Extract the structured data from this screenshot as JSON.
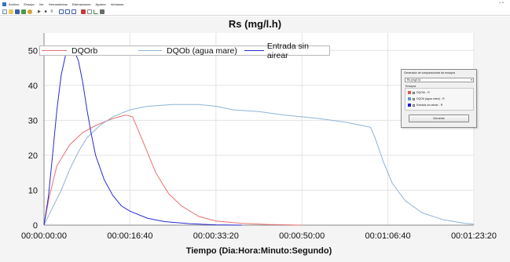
{
  "menu": {
    "items": [
      "Archivo",
      "Ensayo",
      "Ver",
      "Herramientas",
      "Estimaciones",
      "Ajustes",
      "Ventanas"
    ],
    "window_controls": "- ▫"
  },
  "toolbar": {
    "buttons": [
      "new-file-icon",
      "open-folder-icon",
      "save-icon",
      "export-icon",
      "settings-icon",
      "forward-icon",
      "stop-icon",
      "search-icon",
      "reactor-1-icon",
      "reactor-2-icon",
      "reactor-3-icon",
      "table-icon",
      "grid-icon",
      "chart-icon",
      "image-icon"
    ]
  },
  "chart_data": {
    "type": "line",
    "title": "Rs (mg/l.h)",
    "xlabel": "Tiempo (Dia:Hora:Minuto:Segundo)",
    "ylabel": "",
    "x_unit": "seconds",
    "xlim": [
      0,
      5000
    ],
    "ylim": [
      0,
      55
    ],
    "x_ticks": [
      0,
      1000,
      2000,
      3000,
      4000,
      5000
    ],
    "x_tick_labels": [
      "00:00:00:00",
      "00:00:16:40",
      "00:00:33:20",
      "00:00:50:00",
      "00:01:06:40",
      "00:01:23:20"
    ],
    "y_ticks": [
      0,
      10,
      20,
      30,
      40,
      50
    ],
    "grid": true,
    "legend_position": "top-left",
    "series": [
      {
        "name": "DQOrb",
        "color": "#e87070",
        "points": [
          [
            0,
            0
          ],
          [
            60,
            8
          ],
          [
            150,
            17
          ],
          [
            300,
            23
          ],
          [
            450,
            26.5
          ],
          [
            600,
            28.5
          ],
          [
            800,
            30.5
          ],
          [
            950,
            31.5
          ],
          [
            1030,
            31
          ],
          [
            1150,
            24
          ],
          [
            1300,
            15
          ],
          [
            1450,
            9
          ],
          [
            1600,
            5.5
          ],
          [
            1800,
            2.5
          ],
          [
            2000,
            1.2
          ],
          [
            2300,
            0.5
          ],
          [
            2600,
            0.2
          ],
          [
            3000,
            0
          ]
        ]
      },
      {
        "name": "DQOb (agua mare)",
        "color": "#8fb4d8",
        "points": [
          [
            0,
            0
          ],
          [
            100,
            5
          ],
          [
            200,
            10
          ],
          [
            300,
            16
          ],
          [
            400,
            21
          ],
          [
            500,
            25
          ],
          [
            650,
            28.5
          ],
          [
            800,
            31
          ],
          [
            1000,
            33
          ],
          [
            1200,
            34
          ],
          [
            1500,
            34.5
          ],
          [
            1800,
            34.5
          ],
          [
            2000,
            34
          ],
          [
            2200,
            33
          ],
          [
            2500,
            32.5
          ],
          [
            2800,
            31.5
          ],
          [
            3200,
            30.5
          ],
          [
            3500,
            29.5
          ],
          [
            3700,
            28.5
          ],
          [
            3800,
            28
          ],
          [
            3850,
            25
          ],
          [
            3950,
            18
          ],
          [
            4050,
            12
          ],
          [
            4200,
            7
          ],
          [
            4400,
            3.5
          ],
          [
            4650,
            1.5
          ],
          [
            4900,
            0.5
          ],
          [
            5000,
            0.3
          ]
        ]
      },
      {
        "name": "Entrada sin airear",
        "color": "#2a2ad0",
        "points": [
          [
            0,
            0
          ],
          [
            50,
            8
          ],
          [
            100,
            20
          ],
          [
            150,
            33
          ],
          [
            200,
            43
          ],
          [
            250,
            48.5
          ],
          [
            300,
            50.5
          ],
          [
            350,
            50
          ],
          [
            400,
            47
          ],
          [
            450,
            41
          ],
          [
            500,
            33
          ],
          [
            550,
            26
          ],
          [
            600,
            20
          ],
          [
            700,
            13
          ],
          [
            800,
            8.5
          ],
          [
            900,
            5.5
          ],
          [
            1000,
            4
          ],
          [
            1200,
            2
          ],
          [
            1400,
            1
          ],
          [
            1700,
            0.4
          ],
          [
            2000,
            0.1
          ],
          [
            2300,
            0
          ]
        ]
      }
    ]
  },
  "dialog": {
    "title": "Generador de comparaciones de ensayos",
    "selected_variable": "Rs (mg/l.h)",
    "group_label": "Ensayos",
    "items": [
      {
        "label": "DQOrb - R",
        "color": "#e05555",
        "checked": true
      },
      {
        "label": "DQOb (agua mare) - R",
        "color": "#5f95cc",
        "checked": true
      },
      {
        "label": "Entrada sin airear - R",
        "color": "#1d1dc8",
        "checked": true
      }
    ],
    "button_label": "Generar"
  }
}
